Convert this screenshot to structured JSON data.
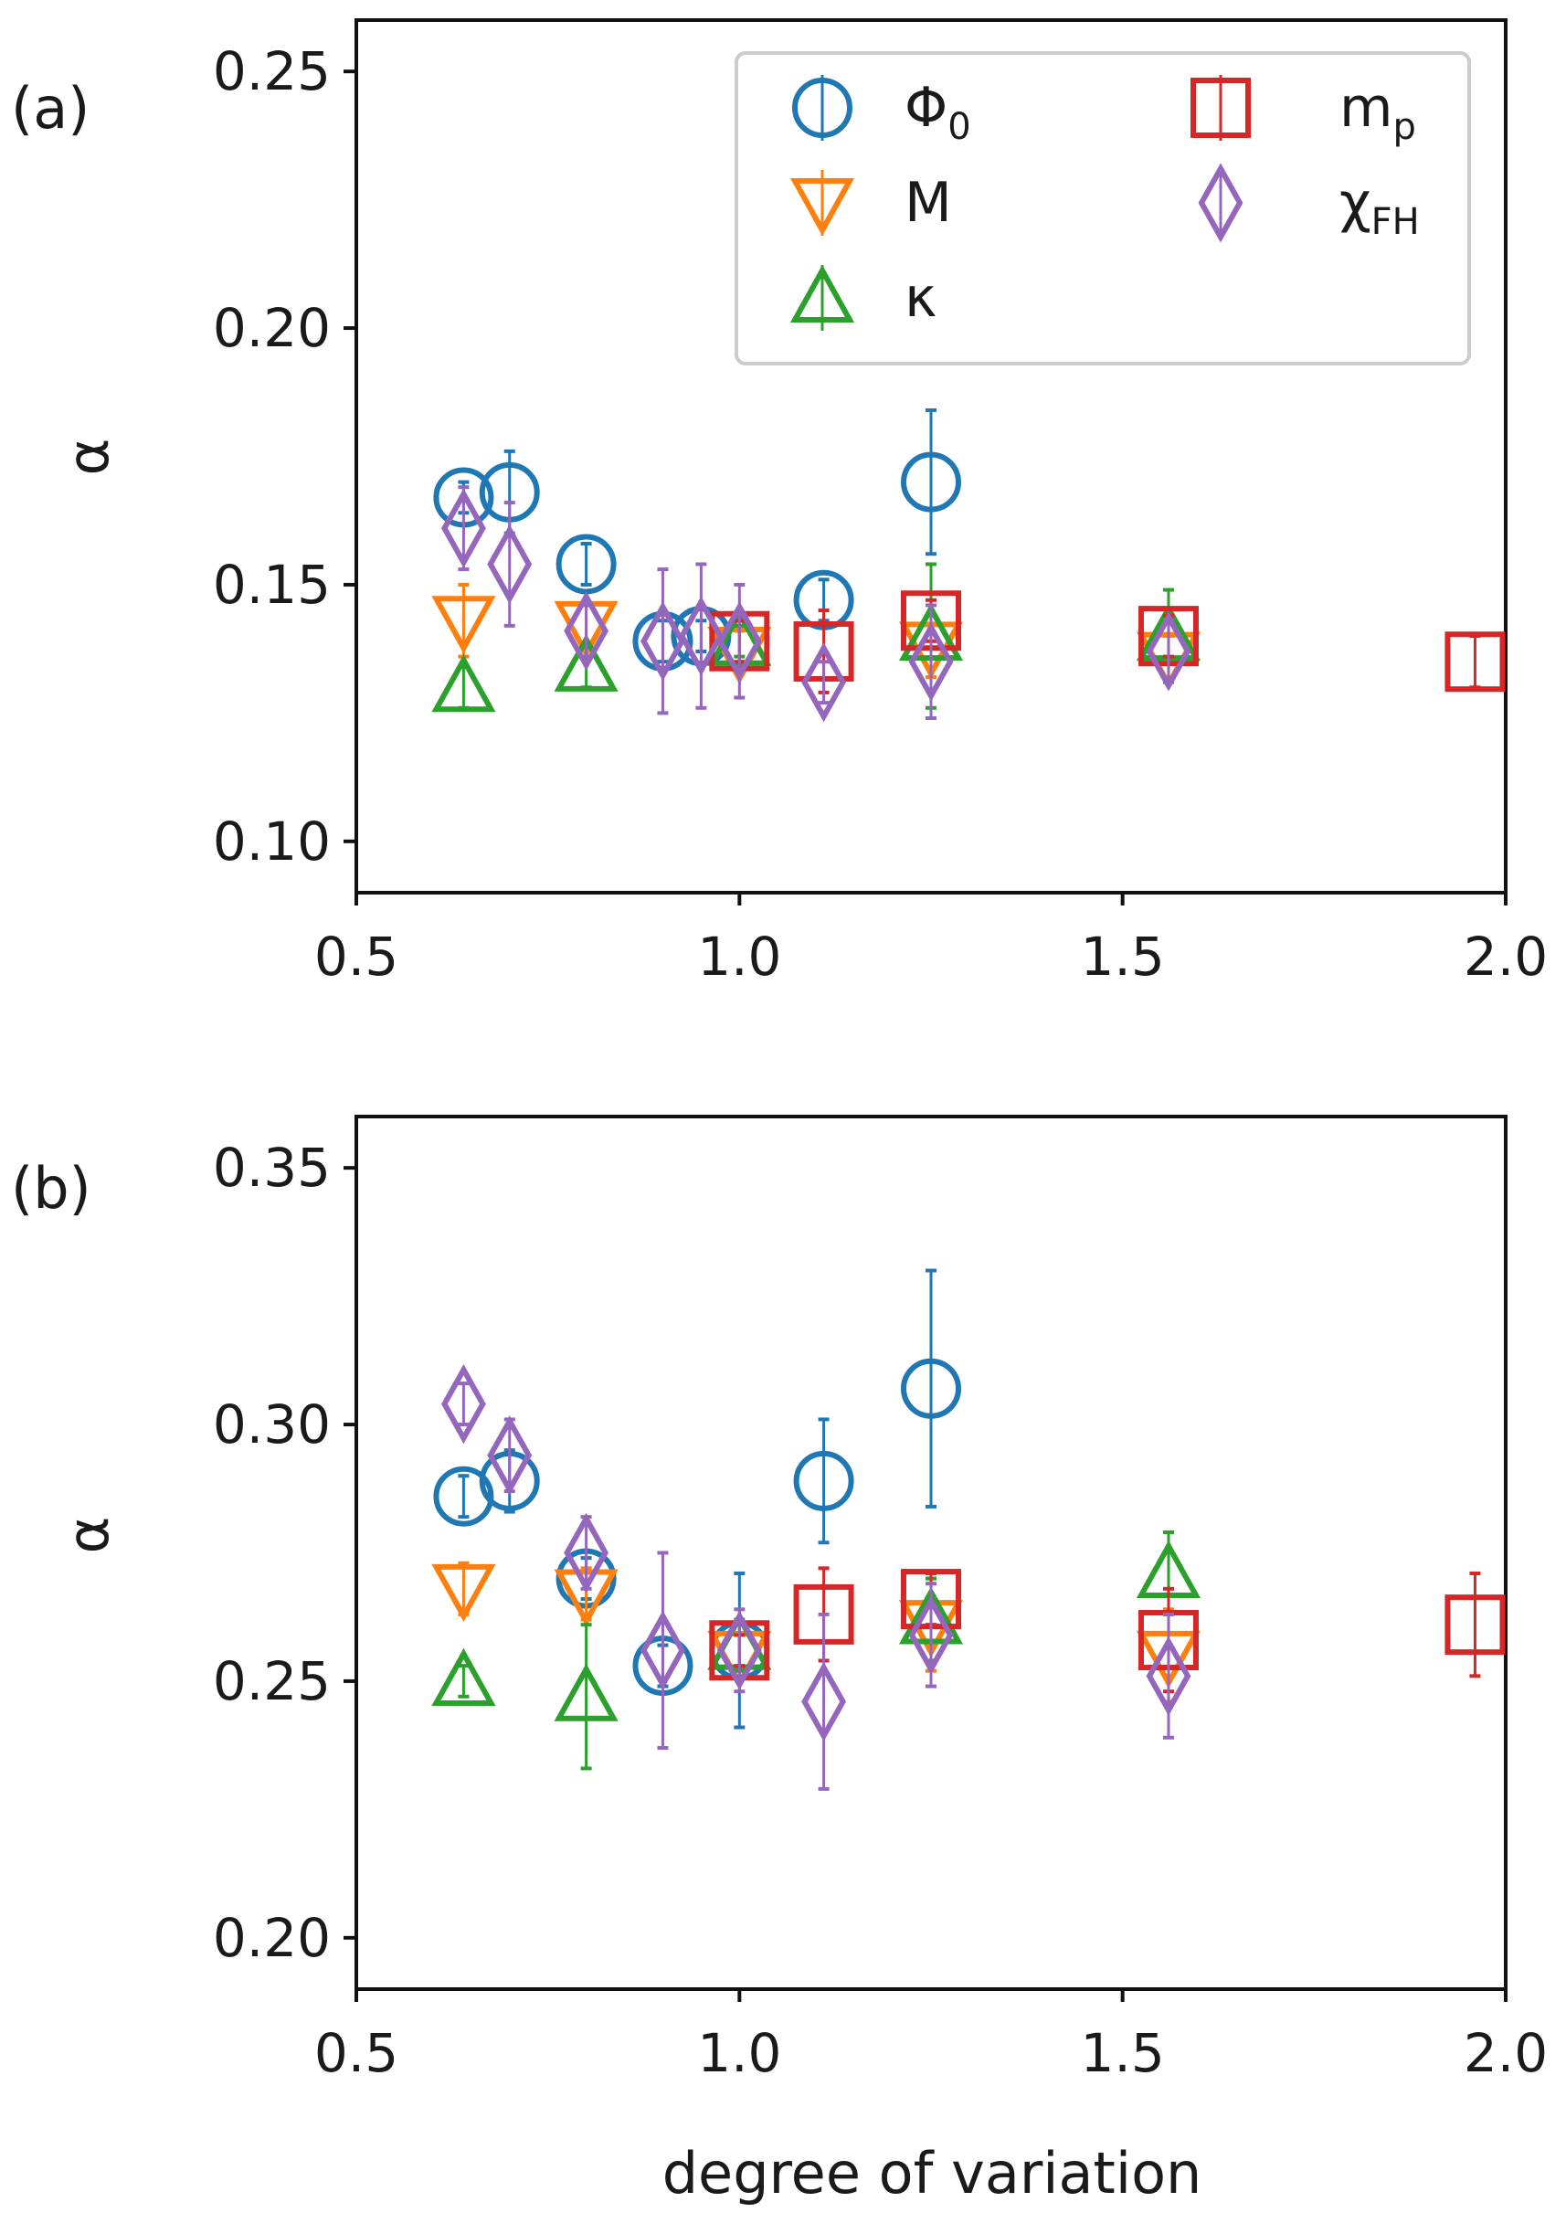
{
  "chart_data": {
    "type": "scatter",
    "xlabel": "degree of variation",
    "xlim": [
      0.5,
      2.0
    ],
    "xticks": [
      "0.5",
      "1.0",
      "1.5",
      "2.0"
    ],
    "xtick_values": [
      0.5,
      1.0,
      1.5,
      2.0
    ],
    "colors": {
      "phi0": "#1f77b4",
      "M": "#ff7f0e",
      "kappa": "#2ca02c",
      "mp": "#d62728",
      "chiFH": "#9467bd"
    },
    "legend": {
      "placement": "top-right",
      "entries": [
        {
          "key": "phi0",
          "text": "Φ",
          "sub": "0",
          "marker": "circle"
        },
        {
          "key": "M",
          "text": "M",
          "sub": "",
          "marker": "triangle-down"
        },
        {
          "key": "kappa",
          "text": "κ",
          "sub": "",
          "marker": "triangle-up"
        },
        {
          "key": "mp",
          "text": "m",
          "sub": "p",
          "marker": "square"
        },
        {
          "key": "chiFH",
          "text": "χ",
          "sub": "FH",
          "marker": "diamond"
        }
      ]
    },
    "panels": [
      {
        "label": "(a)",
        "ylabel": "α",
        "ylim": [
          0.09,
          0.26
        ],
        "yticks": [
          "0.10",
          "0.15",
          "0.20",
          "0.25"
        ],
        "ytick_values": [
          0.1,
          0.15,
          0.2,
          0.25
        ],
        "series": [
          {
            "key": "phi0",
            "points": [
              {
                "x": 0.64,
                "y": 0.167,
                "err": 0.003
              },
              {
                "x": 0.7,
                "y": 0.168,
                "err": 0.008
              },
              {
                "x": 0.8,
                "y": 0.154,
                "err": 0.004
              },
              {
                "x": 0.9,
                "y": 0.139,
                "err": 0.004
              },
              {
                "x": 0.95,
                "y": 0.14,
                "err": 0.003
              },
              {
                "x": 1.11,
                "y": 0.147,
                "err": 0.004
              },
              {
                "x": 1.25,
                "y": 0.17,
                "err": 0.014
              }
            ]
          },
          {
            "key": "M",
            "points": [
              {
                "x": 0.64,
                "y": 0.143,
                "err": 0.007
              },
              {
                "x": 0.8,
                "y": 0.142,
                "err": 0.004
              },
              {
                "x": 1.0,
                "y": 0.137,
                "err": 0.004
              },
              {
                "x": 1.25,
                "y": 0.138,
                "err": 0.006
              },
              {
                "x": 1.56,
                "y": 0.136,
                "err": 0.004
              }
            ]
          },
          {
            "key": "kappa",
            "points": [
              {
                "x": 0.64,
                "y": 0.13,
                "err": 0.004
              },
              {
                "x": 0.8,
                "y": 0.134,
                "err": 0.004
              },
              {
                "x": 1.0,
                "y": 0.139,
                "err": 0.003
              },
              {
                "x": 1.25,
                "y": 0.14,
                "err": 0.014
              },
              {
                "x": 1.56,
                "y": 0.14,
                "err": 0.009
              }
            ]
          },
          {
            "key": "mp",
            "points": [
              {
                "x": 1.0,
                "y": 0.139,
                "err": 0.004
              },
              {
                "x": 1.11,
                "y": 0.137,
                "err": 0.008
              },
              {
                "x": 1.25,
                "y": 0.143,
                "err": 0.004
              },
              {
                "x": 1.56,
                "y": 0.14,
                "err": 0.004
              },
              {
                "x": 1.96,
                "y": 0.135,
                "err": 0.005
              }
            ]
          },
          {
            "key": "chiFH",
            "points": [
              {
                "x": 0.64,
                "y": 0.161,
                "err": 0.008
              },
              {
                "x": 0.7,
                "y": 0.154,
                "err": 0.012
              },
              {
                "x": 0.8,
                "y": 0.141,
                "err": 0.005
              },
              {
                "x": 0.9,
                "y": 0.139,
                "err": 0.014
              },
              {
                "x": 0.95,
                "y": 0.14,
                "err": 0.014
              },
              {
                "x": 1.0,
                "y": 0.139,
                "err": 0.011
              },
              {
                "x": 1.11,
                "y": 0.131,
                "err": 0.004
              },
              {
                "x": 1.25,
                "y": 0.135,
                "err": 0.011
              },
              {
                "x": 1.56,
                "y": 0.137,
                "err": 0.006
              }
            ]
          }
        ]
      },
      {
        "label": "(b)",
        "ylabel": "α",
        "ylim": [
          0.19,
          0.36
        ],
        "yticks": [
          "0.20",
          "0.25",
          "0.30",
          "0.35"
        ],
        "ytick_values": [
          0.2,
          0.25,
          0.3,
          0.35
        ],
        "series": [
          {
            "key": "phi0",
            "points": [
              {
                "x": 0.64,
                "y": 0.286,
                "err": 0.004
              },
              {
                "x": 0.7,
                "y": 0.289,
                "err": 0.006
              },
              {
                "x": 0.8,
                "y": 0.27,
                "err": 0.004
              },
              {
                "x": 0.9,
                "y": 0.253,
                "err": 0.004
              },
              {
                "x": 1.0,
                "y": 0.256,
                "err": 0.015
              },
              {
                "x": 1.11,
                "y": 0.289,
                "err": 0.012
              },
              {
                "x": 1.25,
                "y": 0.307,
                "err": 0.023
              }
            ]
          },
          {
            "key": "M",
            "points": [
              {
                "x": 0.64,
                "y": 0.268,
                "err": 0.005
              },
              {
                "x": 0.8,
                "y": 0.267,
                "err": 0.005
              },
              {
                "x": 1.0,
                "y": 0.255,
                "err": 0.004
              },
              {
                "x": 1.25,
                "y": 0.261,
                "err": 0.009
              },
              {
                "x": 1.56,
                "y": 0.255,
                "err": 0.009
              }
            ]
          },
          {
            "key": "kappa",
            "points": [
              {
                "x": 0.64,
                "y": 0.25,
                "err": 0.003
              },
              {
                "x": 0.8,
                "y": 0.247,
                "err": 0.014
              },
              {
                "x": 1.0,
                "y": 0.257,
                "err": 0.005
              },
              {
                "x": 1.25,
                "y": 0.262,
                "err": 0.008
              },
              {
                "x": 1.56,
                "y": 0.271,
                "err": 0.008
              }
            ]
          },
          {
            "key": "mp",
            "points": [
              {
                "x": 1.0,
                "y": 0.256,
                "err": 0.003
              },
              {
                "x": 1.11,
                "y": 0.263,
                "err": 0.009
              },
              {
                "x": 1.25,
                "y": 0.266,
                "err": 0.005
              },
              {
                "x": 1.56,
                "y": 0.258,
                "err": 0.01
              },
              {
                "x": 1.96,
                "y": 0.261,
                "err": 0.01
              }
            ]
          },
          {
            "key": "chiFH",
            "points": [
              {
                "x": 0.64,
                "y": 0.304,
                "err": 0.004
              },
              {
                "x": 0.7,
                "y": 0.294,
                "err": 0.007
              },
              {
                "x": 0.8,
                "y": 0.275,
                "err": 0.007
              },
              {
                "x": 0.9,
                "y": 0.256,
                "err": 0.019
              },
              {
                "x": 1.0,
                "y": 0.256,
                "err": 0.008
              },
              {
                "x": 1.11,
                "y": 0.246,
                "err": 0.017
              },
              {
                "x": 1.25,
                "y": 0.259,
                "err": 0.01
              },
              {
                "x": 1.56,
                "y": 0.251,
                "err": 0.012
              }
            ]
          }
        ]
      }
    ]
  }
}
